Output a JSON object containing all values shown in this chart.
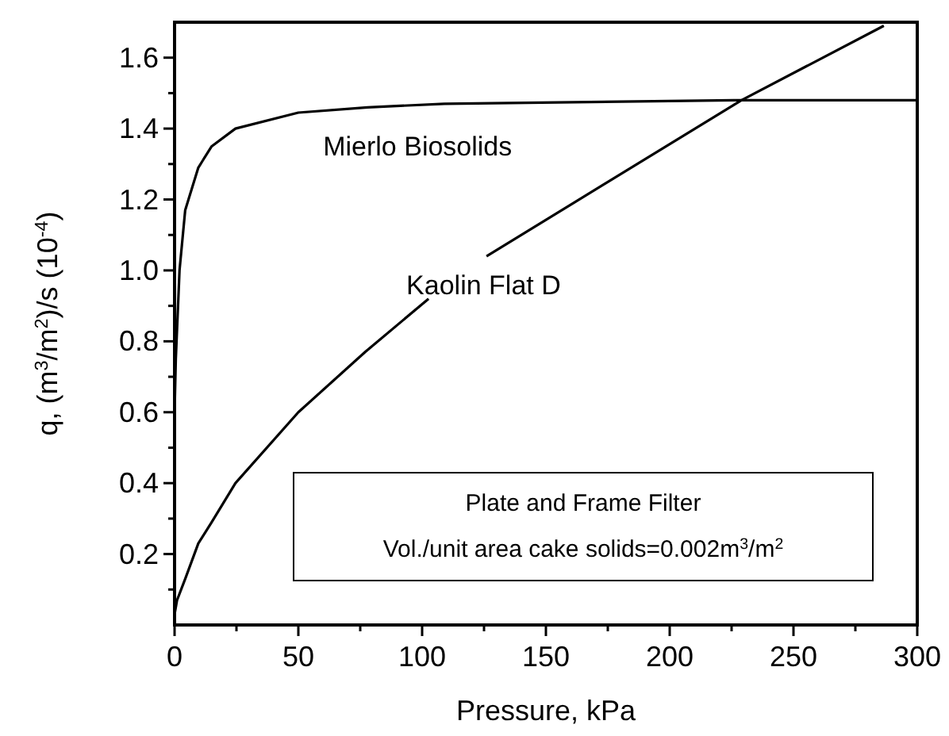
{
  "chart_data": {
    "type": "line",
    "xlabel": "Pressure, kPa",
    "ylabel": "q, (m$^{3}$/m$^{2}$)/s (10$^{-4}$)",
    "xlim": [
      0,
      300
    ],
    "ylim": [
      0,
      1.7
    ],
    "xticks": [
      0,
      {
        "value": 25,
        "label": null
      },
      50,
      {
        "value": 75,
        "label": null
      },
      100,
      {
        "value": 125,
        "label": null
      },
      150,
      {
        "value": 175,
        "label": null
      },
      200,
      {
        "value": 225,
        "label": null
      },
      250,
      {
        "value": 275,
        "label": null
      },
      300
    ],
    "yticks": [
      {
        "value": 0.1,
        "label": null
      },
      {
        "value": 0.2,
        "label": "0.2"
      },
      {
        "value": 0.3,
        "label": null
      },
      {
        "value": 0.4,
        "label": "0.4"
      },
      {
        "value": 0.5,
        "label": null
      },
      {
        "value": 0.6,
        "label": "0.6"
      },
      {
        "value": 0.7,
        "label": null
      },
      {
        "value": 0.8,
        "label": "0.8"
      },
      {
        "value": 0.9,
        "label": null
      },
      {
        "value": 1.0,
        "label": "1.0"
      },
      {
        "value": 1.1,
        "label": null
      },
      {
        "value": 1.2,
        "label": "1.2"
      },
      {
        "value": 1.3,
        "label": null
      },
      {
        "value": 1.4,
        "label": "1.4"
      },
      {
        "value": 1.5,
        "label": null
      },
      {
        "value": 1.6,
        "label": "1.6"
      }
    ],
    "grid": false,
    "marker": "none",
    "line_style": "solid",
    "series": [
      {
        "name": "Mierlo Biosolids",
        "color": "#000000",
        "x": [
          0,
          0.5,
          2,
          4.3,
          9.6,
          15,
          24.6,
          50,
          78,
          109,
          226,
          300
        ],
        "values": [
          0.6,
          0.75,
          1.0,
          1.17,
          1.29,
          1.35,
          1.4,
          1.445,
          1.46,
          1.47,
          1.48,
          1.48
        ]
      },
      {
        "name": "Kaolin Flat D",
        "color": "#000000",
        "x": [
          0,
          1,
          4.3,
          9.6,
          15,
          24.6,
          50,
          77,
          102.6,
          114,
          126,
          229,
          286.5
        ],
        "values": [
          0.03,
          0.07,
          0.13,
          0.23,
          0.29,
          0.4,
          0.6,
          0.77,
          0.92,
          null,
          1.04,
          1.48,
          1.69
        ]
      }
    ],
    "annotations": [
      "Plate and Frame Filter",
      "Vol./unit area cake solids=0.002m$^{3}$/m$^{2}$"
    ]
  }
}
